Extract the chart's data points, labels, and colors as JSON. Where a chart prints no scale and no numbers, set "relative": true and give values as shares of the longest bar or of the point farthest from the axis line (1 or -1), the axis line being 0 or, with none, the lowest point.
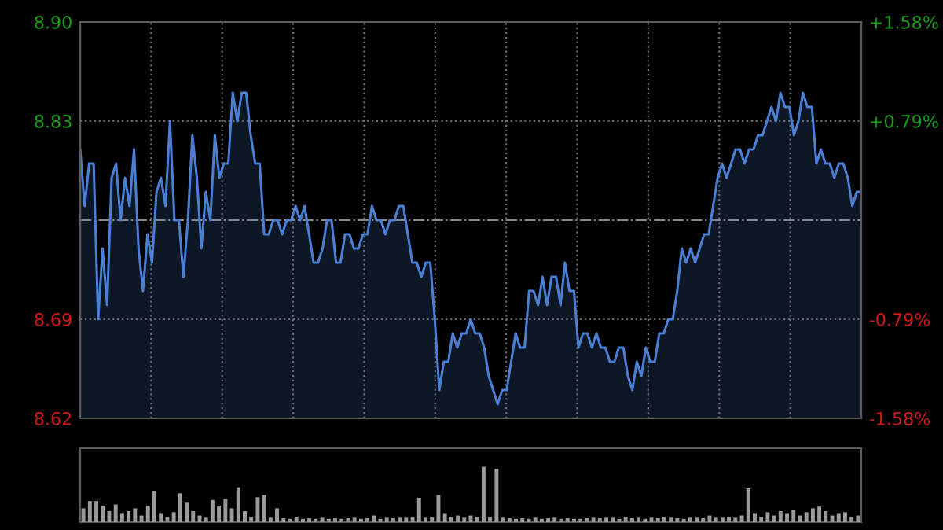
{
  "chart_data": [
    {
      "type": "area",
      "ylim": [
        8.62,
        8.9
      ],
      "y2lim": [
        -1.58,
        1.58
      ],
      "categories": [
        null,
        null,
        null,
        null,
        null,
        null,
        null,
        null,
        null,
        null,
        null,
        null,
        null,
        null,
        null,
        null,
        null,
        null,
        null,
        null,
        null,
        null,
        null,
        null,
        null,
        null,
        null,
        null,
        null,
        null,
        null,
        null,
        null,
        null,
        null,
        null,
        null,
        null,
        null,
        null,
        null,
        null,
        null,
        null,
        null,
        null,
        null,
        null,
        null,
        null,
        null,
        null,
        null,
        null,
        null,
        null,
        null,
        null,
        null,
        null,
        null,
        null,
        null,
        null,
        null,
        null,
        null,
        null,
        null,
        null,
        null,
        null,
        null,
        null,
        null,
        null,
        null,
        null,
        null,
        null,
        null,
        null,
        null,
        null,
        null,
        null,
        null,
        null,
        null,
        null,
        null,
        null,
        null,
        null,
        null,
        null,
        null,
        null,
        null,
        null,
        null,
        null,
        null,
        null,
        null,
        null,
        null,
        null,
        null,
        null,
        null,
        null,
        null,
        null,
        null,
        null,
        null,
        null,
        null,
        null,
        null,
        null,
        null,
        null,
        null,
        null,
        null,
        null,
        null,
        null,
        null,
        null,
        null,
        null,
        null,
        null,
        null,
        null,
        null,
        null,
        null,
        null,
        null,
        null,
        null,
        null,
        null,
        null,
        null,
        null,
        null,
        null,
        null,
        null,
        null,
        null,
        null,
        null,
        null,
        null,
        null,
        null,
        null,
        null,
        null,
        null,
        null,
        null,
        null,
        null,
        null,
        null,
        null,
        null,
        null
      ],
      "yticks": [
        {
          "value": 8.62,
          "label": "8.62"
        },
        {
          "value": 8.69,
          "label": "8.69"
        },
        {
          "value": 8.83,
          "label": "8.83"
        },
        {
          "value": 8.9,
          "label": "8.90"
        }
      ],
      "y2ticks": [
        {
          "value": -1.58,
          "label": "-1.58%"
        },
        {
          "value": -0.79,
          "label": "-0.79%"
        },
        {
          "value": 0.79,
          "label": "+0.79%"
        },
        {
          "value": 1.58,
          "label": "+1.58%"
        }
      ],
      "tick_labels": "y",
      "grid": true,
      "ref_lines": [
        {
          "axis": "y",
          "value": 8.76,
          "label": null,
          "line_style": "dashdot",
          "color": "#8a8a8a"
        }
      ],
      "series": [
        {
          "color": "#4a7fd4",
          "values": [
            8.81,
            8.77,
            8.8,
            8.8,
            8.69,
            8.74,
            8.7,
            8.79,
            8.8,
            8.76,
            8.79,
            8.77,
            8.81,
            8.74,
            8.71,
            8.75,
            8.73,
            8.78,
            8.79,
            8.77,
            8.83,
            8.76,
            8.76,
            8.72,
            8.76,
            8.82,
            8.79,
            8.74,
            8.78,
            8.76,
            8.82,
            8.79,
            8.8,
            8.8,
            8.85,
            8.83,
            8.85,
            8.85,
            8.82,
            8.8,
            8.8,
            8.75,
            8.75,
            8.76,
            8.76,
            8.75,
            8.76,
            8.76,
            8.77,
            8.76,
            8.77,
            8.75,
            8.73,
            8.73,
            8.74,
            8.76,
            8.76,
            8.73,
            8.73,
            8.75,
            8.75,
            8.74,
            8.74,
            8.75,
            8.75,
            8.77,
            8.76,
            8.76,
            8.75,
            8.76,
            8.76,
            8.77,
            8.77,
            8.75,
            8.73,
            8.73,
            8.72,
            8.73,
            8.73,
            8.69,
            8.64,
            8.66,
            8.66,
            8.68,
            8.67,
            8.68,
            8.68,
            8.69,
            8.68,
            8.68,
            8.67,
            8.65,
            8.64,
            8.63,
            8.64,
            8.64,
            8.66,
            8.68,
            8.67,
            8.67,
            8.71,
            8.71,
            8.7,
            8.72,
            8.7,
            8.72,
            8.72,
            8.7,
            8.73,
            8.71,
            8.71,
            8.67,
            8.68,
            8.68,
            8.67,
            8.68,
            8.67,
            8.67,
            8.66,
            8.66,
            8.67,
            8.67,
            8.65,
            8.64,
            8.66,
            8.65,
            8.67,
            8.66,
            8.66,
            8.68,
            8.68,
            8.69,
            8.69,
            8.71,
            8.74,
            8.73,
            8.74,
            8.73,
            8.74,
            8.75,
            8.75,
            8.77,
            8.79,
            8.8,
            8.79,
            8.8,
            8.81,
            8.81,
            8.8,
            8.81,
            8.81,
            8.82,
            8.82,
            8.83,
            8.84,
            8.83,
            8.85,
            8.84,
            8.84,
            8.82,
            8.83,
            8.85,
            8.84,
            8.84,
            8.8,
            8.81,
            8.8,
            8.8,
            8.79,
            8.8,
            8.8,
            8.79,
            8.77,
            8.78,
            8.78
          ]
        }
      ]
    },
    {
      "type": "bar",
      "relative": true,
      "tick_labels": false,
      "categories": [
        null,
        null,
        null,
        null,
        null,
        null,
        null,
        null,
        null,
        null,
        null,
        null,
        null,
        null,
        null,
        null,
        null,
        null,
        null,
        null,
        null,
        null,
        null,
        null,
        null,
        null,
        null,
        null,
        null,
        null,
        null,
        null,
        null,
        null,
        null,
        null,
        null,
        null,
        null,
        null,
        null,
        null,
        null,
        null,
        null,
        null,
        null,
        null,
        null,
        null,
        null,
        null,
        null,
        null,
        null,
        null,
        null,
        null,
        null,
        null,
        null,
        null,
        null,
        null,
        null,
        null,
        null,
        null,
        null,
        null,
        null,
        null,
        null,
        null,
        null,
        null,
        null,
        null,
        null,
        null,
        null,
        null,
        null,
        null,
        null,
        null,
        null,
        null,
        null,
        null,
        null,
        null,
        null,
        null,
        null,
        null,
        null,
        null,
        null,
        null,
        null,
        null,
        null,
        null,
        null,
        null,
        null,
        null,
        null,
        null,
        null,
        null,
        null,
        null,
        null,
        null,
        null,
        null,
        null,
        null,
        null
      ],
      "color": "#9a9a9a",
      "values": [
        0.25,
        0.38,
        0.38,
        0.3,
        0.2,
        0.32,
        0.15,
        0.2,
        0.25,
        0.12,
        0.3,
        0.56,
        0.15,
        0.1,
        0.18,
        0.52,
        0.35,
        0.2,
        0.12,
        0.08,
        0.4,
        0.3,
        0.42,
        0.25,
        0.63,
        0.2,
        0.1,
        0.45,
        0.49,
        0.08,
        0.25,
        0.07,
        0.06,
        0.1,
        0.06,
        0.07,
        0.06,
        0.08,
        0.06,
        0.07,
        0.06,
        0.07,
        0.08,
        0.06,
        0.07,
        0.12,
        0.06,
        0.08,
        0.07,
        0.08,
        0.08,
        0.1,
        0.44,
        0.08,
        0.1,
        0.49,
        0.15,
        0.1,
        0.12,
        0.08,
        0.12,
        0.1,
        1,
        0.1,
        0.96,
        0.08,
        0.07,
        0.06,
        0.07,
        0.06,
        0.08,
        0.06,
        0.07,
        0.08,
        0.06,
        0.07,
        0.06,
        0.06,
        0.07,
        0.08,
        0.07,
        0.08,
        0.08,
        0.06,
        0.1,
        0.07,
        0.08,
        0.06,
        0.08,
        0.07,
        0.1,
        0.08,
        0.07,
        0.06,
        0.08,
        0.08,
        0.07,
        0.12,
        0.08,
        0.08,
        0.1,
        0.08,
        0.12,
        0.61,
        0.15,
        0.1,
        0.18,
        0.12,
        0.2,
        0.15,
        0.22,
        0.12,
        0.18,
        0.25,
        0.28,
        0.2,
        0.12,
        0.15,
        0.18,
        0.1,
        0.12
      ]
    }
  ]
}
